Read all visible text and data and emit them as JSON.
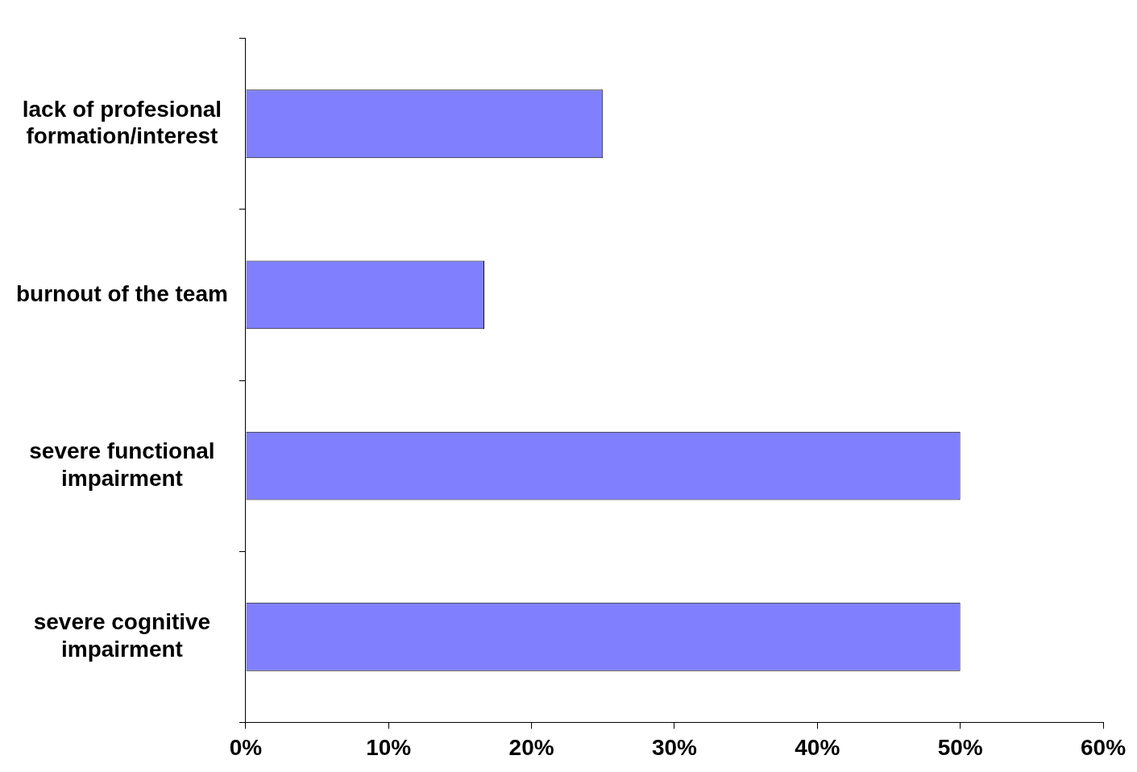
{
  "chart_data": {
    "type": "bar",
    "orientation": "horizontal",
    "categories": [
      "lack of profesional formation/interest",
      "burnout of the team",
      "severe functional impairment",
      "severe cognitive impairment"
    ],
    "values": [
      25,
      16.7,
      50,
      50
    ],
    "color": "#8080ff",
    "xlim": [
      0,
      60
    ],
    "xticks": [
      {
        "value": 0,
        "label": "0%"
      },
      {
        "value": 10,
        "label": "10%"
      },
      {
        "value": 20,
        "label": "20%"
      },
      {
        "value": 30,
        "label": "30%"
      },
      {
        "value": 40,
        "label": "40%"
      },
      {
        "value": 50,
        "label": "50%"
      },
      {
        "value": 60,
        "label": "60%"
      }
    ]
  }
}
